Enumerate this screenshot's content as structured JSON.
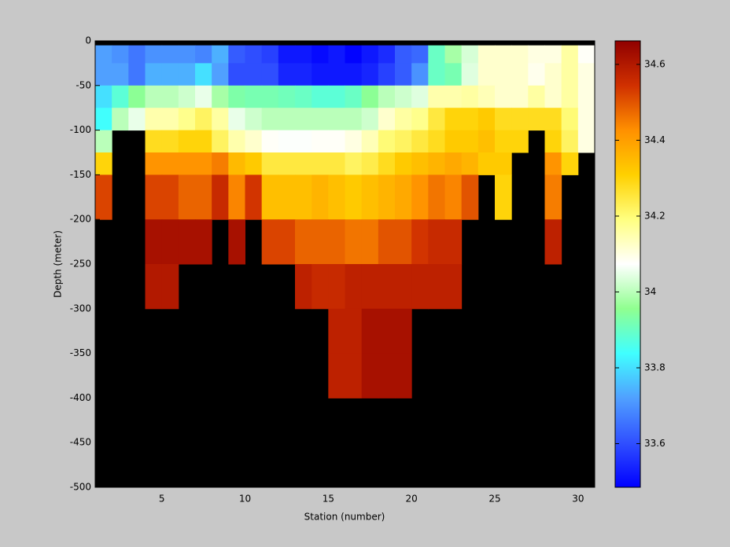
{
  "chart_data": {
    "type": "heatmap",
    "x_label": "Station (number)",
    "y_label": "Depth (meter)",
    "x_edges": [
      1,
      2,
      3,
      4,
      5,
      6,
      7,
      8,
      9,
      10,
      11,
      12,
      13,
      14,
      15,
      16,
      17,
      18,
      19,
      20,
      21,
      22,
      23,
      24,
      25,
      26,
      27,
      28,
      29,
      30,
      31
    ],
    "y_edges": [
      -5,
      -25,
      -50,
      -75,
      -100,
      -125,
      -150,
      -200,
      -250,
      -300,
      -350,
      -400
    ],
    "values": [
      [
        33.72,
        33.7,
        33.66,
        33.7,
        33.7,
        33.7,
        33.68,
        33.74,
        33.62,
        33.6,
        33.58,
        33.52,
        33.52,
        33.5,
        33.52,
        33.49,
        33.52,
        33.55,
        33.62,
        33.64,
        33.9,
        33.98,
        34.03,
        34.12,
        34.12,
        34.12,
        34.1,
        34.1,
        34.16,
        34.08
      ],
      [
        33.72,
        33.72,
        33.66,
        33.74,
        33.74,
        33.74,
        33.8,
        33.72,
        33.6,
        33.6,
        33.6,
        33.54,
        33.54,
        33.52,
        33.52,
        33.52,
        33.54,
        33.58,
        33.62,
        33.7,
        33.9,
        33.92,
        34.04,
        34.12,
        34.12,
        34.12,
        34.09,
        34.12,
        34.16,
        34.1
      ],
      [
        33.8,
        33.88,
        33.95,
        34.0,
        34.0,
        34.02,
        34.05,
        33.98,
        33.93,
        33.92,
        33.92,
        33.91,
        33.9,
        33.88,
        33.88,
        33.9,
        33.95,
        34.0,
        34.02,
        34.04,
        34.15,
        34.15,
        34.16,
        34.14,
        34.12,
        34.12,
        34.16,
        34.12,
        34.16,
        34.1
      ],
      [
        33.84,
        34.0,
        34.05,
        34.15,
        34.15,
        34.18,
        34.22,
        34.16,
        34.05,
        34.02,
        34.0,
        34.0,
        34.0,
        34.0,
        34.0,
        34.0,
        34.02,
        34.12,
        34.16,
        34.18,
        34.25,
        34.3,
        34.3,
        34.32,
        34.28,
        34.28,
        34.28,
        34.28,
        34.2,
        34.1
      ],
      [
        34.0,
        null,
        null,
        34.28,
        34.28,
        34.3,
        34.3,
        34.22,
        34.15,
        34.12,
        34.08,
        34.07,
        34.07,
        34.08,
        34.08,
        34.1,
        34.14,
        34.2,
        34.22,
        34.25,
        34.28,
        34.32,
        34.32,
        34.34,
        34.3,
        34.3,
        null,
        34.3,
        34.22,
        34.1
      ],
      [
        34.3,
        null,
        null,
        34.42,
        34.42,
        34.42,
        34.42,
        34.45,
        34.35,
        34.32,
        34.25,
        34.25,
        34.25,
        34.25,
        34.25,
        34.22,
        34.24,
        34.28,
        34.32,
        34.34,
        34.36,
        34.38,
        34.36,
        34.32,
        34.32,
        null,
        null,
        34.42,
        34.3,
        null
      ],
      [
        34.52,
        null,
        null,
        34.52,
        34.52,
        34.48,
        34.48,
        34.56,
        34.44,
        34.54,
        34.34,
        34.34,
        34.34,
        34.36,
        34.34,
        34.32,
        34.34,
        34.36,
        34.38,
        34.42,
        34.46,
        34.44,
        34.5,
        null,
        34.3,
        null,
        null,
        34.45,
        null,
        null
      ],
      [
        null,
        null,
        null,
        34.62,
        34.62,
        34.62,
        34.62,
        null,
        34.62,
        null,
        34.52,
        34.52,
        34.48,
        34.48,
        34.48,
        34.46,
        34.46,
        34.5,
        34.5,
        34.54,
        34.56,
        34.56,
        null,
        null,
        null,
        null,
        null,
        34.58,
        null,
        null
      ],
      [
        null,
        null,
        null,
        34.6,
        34.6,
        null,
        null,
        null,
        null,
        null,
        null,
        null,
        34.58,
        34.56,
        34.56,
        34.58,
        34.58,
        34.58,
        34.58,
        34.58,
        34.58,
        34.58,
        null,
        null,
        null,
        null,
        null,
        null,
        null,
        null
      ],
      [
        null,
        null,
        null,
        null,
        null,
        null,
        null,
        null,
        null,
        null,
        null,
        null,
        null,
        null,
        34.58,
        34.58,
        34.62,
        34.62,
        34.62,
        null,
        null,
        null,
        null,
        null,
        null,
        null,
        null,
        null,
        null,
        null
      ],
      [
        null,
        null,
        null,
        null,
        null,
        null,
        null,
        null,
        null,
        null,
        null,
        null,
        null,
        null,
        34.58,
        34.58,
        34.62,
        34.62,
        34.62,
        null,
        null,
        null,
        null,
        null,
        null,
        null,
        null,
        null,
        null,
        null
      ]
    ],
    "xlim": [
      1,
      31
    ],
    "ylim": [
      -500,
      0
    ],
    "xticks": [
      5,
      10,
      15,
      20,
      25,
      30
    ],
    "yticks": [
      0,
      -50,
      -100,
      -150,
      -200,
      -250,
      -300,
      -350,
      -400,
      -450,
      -500
    ],
    "clim": [
      33.485,
      34.662
    ],
    "cticks": [
      33.6,
      33.8,
      34,
      34.2,
      34.4,
      34.6
    ],
    "colormap": [
      "#0000ff",
      "#3050ff",
      "#50a0ff",
      "#40ffff",
      "#90ff90",
      "#ffffff",
      "#ffff80",
      "#ffd000",
      "#ff9000",
      "#d03000",
      "#900000"
    ],
    "background": "#000000"
  }
}
